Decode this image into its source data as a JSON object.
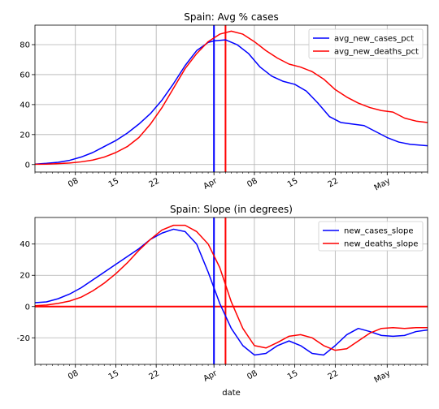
{
  "chart_data": [
    {
      "type": "line",
      "title": "Spain: Avg % cases",
      "xlabel": "",
      "ylabel": "",
      "x_domain": [
        "2020-03-01",
        "2020-05-08"
      ],
      "ylim": [
        -5,
        93
      ],
      "x_ticks": [
        {
          "date": "2020-03-08",
          "label": "08"
        },
        {
          "date": "2020-03-15",
          "label": "15"
        },
        {
          "date": "2020-03-22",
          "label": "22"
        },
        {
          "date": "2020-04-01",
          "label": "Apr"
        },
        {
          "date": "2020-04-08",
          "label": "08"
        },
        {
          "date": "2020-04-15",
          "label": "15"
        },
        {
          "date": "2020-04-22",
          "label": "22"
        },
        {
          "date": "2020-05-01",
          "label": "May"
        }
      ],
      "y_ticks": [
        0,
        20,
        40,
        60,
        80
      ],
      "grid": true,
      "legend_position": "top-right",
      "series": [
        {
          "name": "avg_new_cases_pct",
          "color": "#0000ff",
          "points": [
            [
              "2020-03-01",
              0.3
            ],
            [
              "2020-03-03",
              0.8
            ],
            [
              "2020-03-05",
              1.5
            ],
            [
              "2020-03-07",
              2.8
            ],
            [
              "2020-03-09",
              5
            ],
            [
              "2020-03-11",
              8
            ],
            [
              "2020-03-13",
              12
            ],
            [
              "2020-03-15",
              16
            ],
            [
              "2020-03-17",
              21
            ],
            [
              "2020-03-19",
              27
            ],
            [
              "2020-03-21",
              34
            ],
            [
              "2020-03-23",
              43
            ],
            [
              "2020-03-25",
              54
            ],
            [
              "2020-03-27",
              66
            ],
            [
              "2020-03-29",
              76
            ],
            [
              "2020-03-31",
              81.5
            ],
            [
              "2020-04-01",
              82.5
            ],
            [
              "2020-04-03",
              83.2
            ],
            [
              "2020-04-05",
              80
            ],
            [
              "2020-04-07",
              74
            ],
            [
              "2020-04-09",
              65
            ],
            [
              "2020-04-11",
              59
            ],
            [
              "2020-04-13",
              55.5
            ],
            [
              "2020-04-15",
              53.5
            ],
            [
              "2020-04-17",
              49
            ],
            [
              "2020-04-19",
              41
            ],
            [
              "2020-04-21",
              32
            ],
            [
              "2020-04-23",
              28
            ],
            [
              "2020-04-25",
              27
            ],
            [
              "2020-04-27",
              26
            ],
            [
              "2020-04-29",
              22
            ],
            [
              "2020-05-01",
              18
            ],
            [
              "2020-05-03",
              15
            ],
            [
              "2020-05-05",
              13.5
            ],
            [
              "2020-05-08",
              12.5
            ]
          ]
        },
        {
          "name": "avg_new_deaths_pct",
          "color": "#ff0000",
          "points": [
            [
              "2020-03-01",
              0.2
            ],
            [
              "2020-03-03",
              0.3
            ],
            [
              "2020-03-05",
              0.6
            ],
            [
              "2020-03-07",
              1
            ],
            [
              "2020-03-09",
              1.8
            ],
            [
              "2020-03-11",
              3
            ],
            [
              "2020-03-13",
              5
            ],
            [
              "2020-03-15",
              8
            ],
            [
              "2020-03-17",
              12
            ],
            [
              "2020-03-19",
              18
            ],
            [
              "2020-03-21",
              27
            ],
            [
              "2020-03-23",
              38
            ],
            [
              "2020-03-25",
              51
            ],
            [
              "2020-03-27",
              64
            ],
            [
              "2020-03-29",
              74
            ],
            [
              "2020-03-31",
              82
            ],
            [
              "2020-04-02",
              87
            ],
            [
              "2020-04-04",
              89
            ],
            [
              "2020-04-06",
              87
            ],
            [
              "2020-04-08",
              82
            ],
            [
              "2020-04-10",
              76
            ],
            [
              "2020-04-12",
              71
            ],
            [
              "2020-04-14",
              67
            ],
            [
              "2020-04-16",
              65
            ],
            [
              "2020-04-18",
              62
            ],
            [
              "2020-04-20",
              57
            ],
            [
              "2020-04-22",
              50
            ],
            [
              "2020-04-24",
              45
            ],
            [
              "2020-04-26",
              41
            ],
            [
              "2020-04-28",
              38
            ],
            [
              "2020-04-30",
              36
            ],
            [
              "2020-05-02",
              35
            ],
            [
              "2020-05-04",
              31
            ],
            [
              "2020-05-06",
              29
            ],
            [
              "2020-05-08",
              28
            ]
          ]
        }
      ],
      "vlines": [
        {
          "date": "2020-04-01",
          "color": "#0000ff"
        },
        {
          "date": "2020-04-03",
          "color": "#ff0000"
        }
      ]
    },
    {
      "type": "line",
      "title": "Spain: Slope (in degrees)",
      "xlabel": "date",
      "ylabel": "",
      "x_domain": [
        "2020-03-01",
        "2020-05-08"
      ],
      "ylim": [
        -37,
        57
      ],
      "x_ticks": [
        {
          "date": "2020-03-08",
          "label": "08"
        },
        {
          "date": "2020-03-15",
          "label": "15"
        },
        {
          "date": "2020-03-22",
          "label": "22"
        },
        {
          "date": "2020-04-01",
          "label": "Apr"
        },
        {
          "date": "2020-04-08",
          "label": "08"
        },
        {
          "date": "2020-04-15",
          "label": "15"
        },
        {
          "date": "2020-04-22",
          "label": "22"
        },
        {
          "date": "2020-05-01",
          "label": "May"
        }
      ],
      "y_ticks": [
        -20,
        0,
        20,
        40
      ],
      "grid": true,
      "legend_position": "top-right",
      "series": [
        {
          "name": "new_cases_slope",
          "color": "#0000ff",
          "points": [
            [
              "2020-03-01",
              2.5
            ],
            [
              "2020-03-03",
              3
            ],
            [
              "2020-03-05",
              5
            ],
            [
              "2020-03-07",
              8
            ],
            [
              "2020-03-09",
              12
            ],
            [
              "2020-03-11",
              17
            ],
            [
              "2020-03-13",
              22
            ],
            [
              "2020-03-15",
              27
            ],
            [
              "2020-03-17",
              32
            ],
            [
              "2020-03-19",
              37
            ],
            [
              "2020-03-21",
              43
            ],
            [
              "2020-03-23",
              47
            ],
            [
              "2020-03-25",
              49.5
            ],
            [
              "2020-03-27",
              48
            ],
            [
              "2020-03-29",
              40
            ],
            [
              "2020-03-31",
              22
            ],
            [
              "2020-04-02",
              2
            ],
            [
              "2020-04-04",
              -14
            ],
            [
              "2020-04-06",
              -25
            ],
            [
              "2020-04-08",
              -31
            ],
            [
              "2020-04-10",
              -30
            ],
            [
              "2020-04-12",
              -25
            ],
            [
              "2020-04-14",
              -22
            ],
            [
              "2020-04-16",
              -25
            ],
            [
              "2020-04-18",
              -30
            ],
            [
              "2020-04-20",
              -31
            ],
            [
              "2020-04-22",
              -25
            ],
            [
              "2020-04-24",
              -18
            ],
            [
              "2020-04-26",
              -14
            ],
            [
              "2020-04-28",
              -16
            ],
            [
              "2020-04-30",
              -18.5
            ],
            [
              "2020-05-02",
              -19
            ],
            [
              "2020-05-04",
              -18.5
            ],
            [
              "2020-05-06",
              -16
            ],
            [
              "2020-05-08",
              -15
            ]
          ]
        },
        {
          "name": "new_deaths_slope",
          "color": "#ff0000",
          "points": [
            [
              "2020-03-01",
              0.5
            ],
            [
              "2020-03-03",
              1
            ],
            [
              "2020-03-05",
              2
            ],
            [
              "2020-03-07",
              3.5
            ],
            [
              "2020-03-09",
              6
            ],
            [
              "2020-03-11",
              10
            ],
            [
              "2020-03-13",
              15
            ],
            [
              "2020-03-15",
              21
            ],
            [
              "2020-03-17",
              28
            ],
            [
              "2020-03-19",
              36
            ],
            [
              "2020-03-21",
              43
            ],
            [
              "2020-03-23",
              49
            ],
            [
              "2020-03-25",
              52
            ],
            [
              "2020-03-27",
              52
            ],
            [
              "2020-03-29",
              48
            ],
            [
              "2020-03-31",
              40
            ],
            [
              "2020-04-02",
              25
            ],
            [
              "2020-04-04",
              3
            ],
            [
              "2020-04-06",
              -14
            ],
            [
              "2020-04-08",
              -25
            ],
            [
              "2020-04-10",
              -26.5
            ],
            [
              "2020-04-12",
              -23
            ],
            [
              "2020-04-14",
              -19
            ],
            [
              "2020-04-16",
              -18
            ],
            [
              "2020-04-18",
              -20
            ],
            [
              "2020-04-20",
              -25
            ],
            [
              "2020-04-22",
              -28
            ],
            [
              "2020-04-24",
              -27
            ],
            [
              "2020-04-26",
              -22
            ],
            [
              "2020-04-28",
              -17
            ],
            [
              "2020-04-30",
              -14
            ],
            [
              "2020-05-02",
              -13.5
            ],
            [
              "2020-05-04",
              -14
            ],
            [
              "2020-05-06",
              -13.5
            ],
            [
              "2020-05-08",
              -13.5
            ]
          ]
        }
      ],
      "vlines": [
        {
          "date": "2020-04-01",
          "color": "#0000ff"
        },
        {
          "date": "2020-04-03",
          "color": "#ff0000"
        }
      ],
      "hlines": [
        {
          "y": 0,
          "color": "#ff0000"
        }
      ]
    }
  ]
}
